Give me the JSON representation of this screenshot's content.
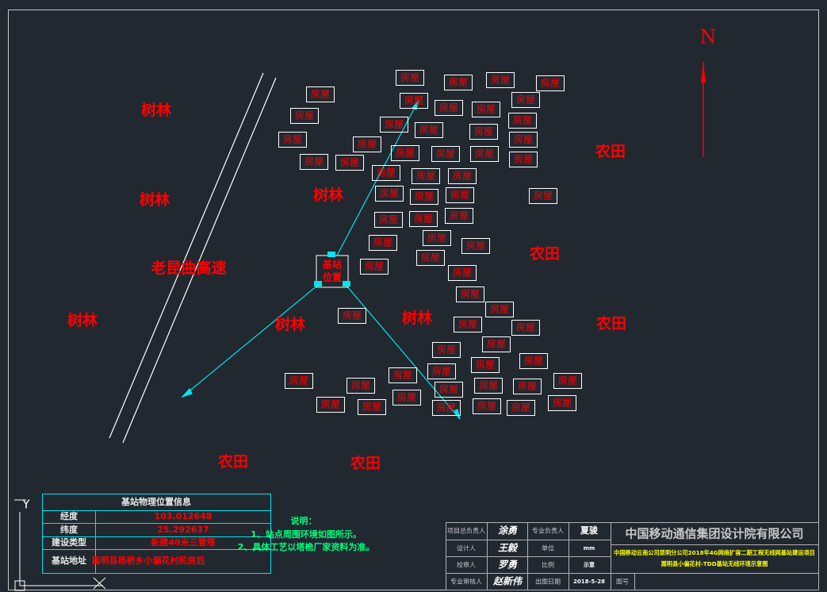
{
  "north": "N",
  "area_labels": [
    "树林",
    "树林",
    "树林",
    "老昆曲高速",
    "树林",
    "树林",
    "树林",
    "农田",
    "农田",
    "农田",
    "农田",
    "农田"
  ],
  "base_station": [
    "基站",
    "位置"
  ],
  "houses": [
    "房屋",
    "房屋",
    "房屋",
    "房屋",
    "房屋",
    "房屋",
    "房屋",
    "房屋",
    "房屋",
    "房屋",
    "房屋",
    "房屋",
    "房屋",
    "房屋",
    "房屋",
    "房屋",
    "房屋",
    "房屋",
    "房屋",
    "房屋",
    "房屋",
    "房屋",
    "房屋",
    "房屋",
    "房屋",
    "房屋",
    "房屋",
    "房屋",
    "房屋",
    "房屋",
    "房屋",
    "房屋",
    "房屋",
    "房屋",
    "房屋",
    "房屋",
    "房屋",
    "房屋",
    "房屋",
    "房屋",
    "房屋",
    "房屋",
    "房屋",
    "房屋",
    "房屋",
    "房屋",
    "房屋",
    "房屋",
    "房屋",
    "房屋",
    "房屋",
    "房屋",
    "房屋",
    "房屋",
    "房屋",
    "房屋",
    "房屋",
    "房屋",
    "房屋",
    "房屋",
    "房屋",
    "房屋",
    "房屋"
  ],
  "info_table": {
    "title": "基站物理位置信息",
    "rows": [
      [
        "经度",
        "103.012648"
      ],
      [
        "纬度",
        "25.292637"
      ],
      [
        "建设类型",
        "新建40米三管塔"
      ],
      [
        "基站地址",
        "嵩明县杨桥乡小偏花村民房后"
      ]
    ]
  },
  "notes": {
    "title": "说明：",
    "items": [
      "1、站点周围环境如图所示。",
      "2、具体工艺以塔桅厂家资料为准。"
    ]
  },
  "title_block": {
    "company": "中国移动通信集团设计院有限公司",
    "description": [
      "中国移动云南公司昆明分公司2018年4G网络扩容二期工程无线网基站建设项目",
      "嵩明县小偏花村-TDD基站无线环境示意图"
    ],
    "rows": [
      [
        "项目总负责人",
        "涂勇",
        "专业负责人",
        "夏骏"
      ],
      [
        "设计人",
        "王毅",
        "单位",
        "mm"
      ],
      [
        "校审人",
        "罗勇",
        "比例",
        "示意"
      ],
      [
        "专业审核人",
        "赵新伟",
        "出图日期",
        "2018-5-28"
      ]
    ],
    "drawing_no": "图号"
  }
}
